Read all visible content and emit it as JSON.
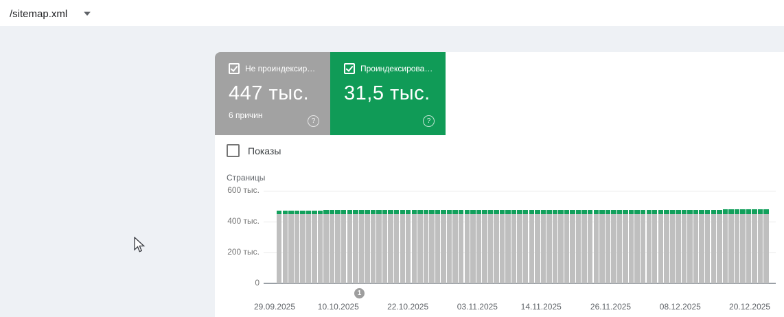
{
  "top_bar": {
    "sitemap_selector": {
      "label": "/sitemap.xml"
    }
  },
  "cards": {
    "not_indexed": {
      "label": "Не проиндексир…",
      "value": "447 тыс.",
      "sublabel": "6 причин",
      "checked": true,
      "color": "#a2a2a2"
    },
    "indexed": {
      "label": "Проиндексирова…",
      "value": "31,5 тыс.",
      "checked": true,
      "color": "#109b57"
    }
  },
  "impressions_toggle": {
    "label": "Показы",
    "checked": false
  },
  "chart_data": {
    "type": "bar",
    "stacked": true,
    "title": "Страницы",
    "ylabel": "Страницы",
    "xlabel": "",
    "ylim": [
      0,
      600000
    ],
    "grid": true,
    "legend_position": "none",
    "yticks": [
      {
        "value": 0,
        "label": "0"
      },
      {
        "value": 200000,
        "label": "200 тыс."
      },
      {
        "value": 400000,
        "label": "400 тыс."
      },
      {
        "value": 600000,
        "label": "600 тыс."
      }
    ],
    "x_start_date": "29.09.2025",
    "x_end_date": "21.12.2025",
    "xticks": [
      {
        "day": 0,
        "label": "29.09.2025"
      },
      {
        "day": 11,
        "label": "10.10.2025"
      },
      {
        "day": 23,
        "label": "22.10.2025"
      },
      {
        "day": 35,
        "label": "03.11.2025"
      },
      {
        "day": 46,
        "label": "14.11.2025"
      },
      {
        "day": 58,
        "label": "26.11.2025"
      },
      {
        "day": 70,
        "label": "08.12.2025"
      },
      {
        "day": 82,
        "label": "20.12.2025"
      }
    ],
    "series": [
      {
        "name": "Не проиндексировано",
        "color": "#bfbfbf",
        "values_rle": [
          [
            84,
            447000
          ]
        ]
      },
      {
        "name": "Проиндексировано",
        "color": "#12a05c",
        "values_rle": [
          [
            8,
            26000
          ],
          [
            68,
            28500
          ],
          [
            8,
            31500
          ]
        ]
      }
    ],
    "marker": {
      "label": "1",
      "day": 14
    }
  }
}
